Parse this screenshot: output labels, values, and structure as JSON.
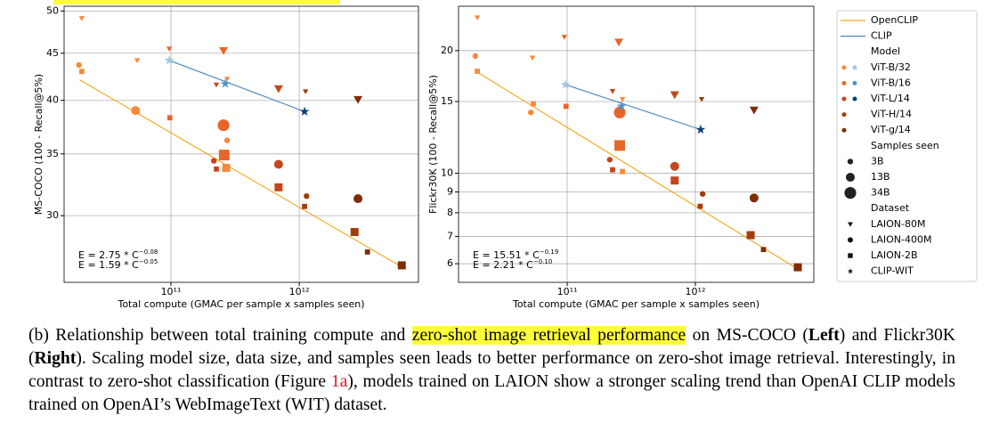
{
  "chart_data": [
    {
      "type": "scatter",
      "xscale": "log",
      "yscale": "log",
      "grid": true,
      "x_label": "Total compute (GMAC per sample x samples seen)",
      "y_label": "MS-COCO (100 - Recall@5%)",
      "xlim": [
        14700000000.0,
        8500000000000.0
      ],
      "ylim": [
        25.4,
        50.6
      ],
      "xticks": [
        {
          "value": 100000000000.0,
          "label": "10¹¹"
        },
        {
          "value": 1000000000000.0,
          "label": "10¹²"
        }
      ],
      "yticks": [
        30,
        35,
        40,
        45,
        50
      ],
      "fits": [
        {
          "source": "OpenCLIP",
          "x": [
            19500000000.0,
            6300000000000.0
          ],
          "y": [
            42.1,
            26.4
          ]
        },
        {
          "source": "CLIP",
          "x": [
            97000000000.0,
            1100000000000.0
          ],
          "y": [
            44.2,
            38.9
          ]
        }
      ],
      "annotations": [
        {
          "text": "E = 2.75 * C",
          "exponent": "−0.08",
          "source": "OpenCLIP"
        },
        {
          "text": "E = 1.59 * C",
          "exponent": "−0.05",
          "source": "CLIP"
        }
      ],
      "points": [
        {
          "x": 20200000000.0,
          "y": 49.1,
          "model": "ViT-B/32",
          "dataset": "LAION-80M",
          "samples": "3B"
        },
        {
          "x": 19200000000.0,
          "y": 43.7,
          "model": "ViT-B/32",
          "dataset": "LAION-400M",
          "samples": "3B"
        },
        {
          "x": 20200000000.0,
          "y": 43.0,
          "model": "ViT-B/32",
          "dataset": "LAION-2B",
          "samples": "3B"
        },
        {
          "x": 54500000000.0,
          "y": 44.2,
          "model": "ViT-B/32",
          "dataset": "LAION-80M",
          "samples": "3B"
        },
        {
          "x": 53000000000.0,
          "y": 39.0,
          "model": "ViT-B/32",
          "dataset": "LAION-400M",
          "samples": "13B"
        },
        {
          "x": 54500000000.0,
          "y": 38.9,
          "model": "ViT-B/32",
          "dataset": "LAION-2B",
          "samples": "3B"
        },
        {
          "x": 97000000000.0,
          "y": 45.5,
          "model": "ViT-B/16",
          "dataset": "LAION-80M",
          "samples": "3B"
        },
        {
          "x": 98000000000.0,
          "y": 38.3,
          "model": "ViT-B/16",
          "dataset": "LAION-2B",
          "samples": "3B"
        },
        {
          "x": 257000000000.0,
          "y": 45.3,
          "model": "ViT-B/16",
          "dataset": "LAION-80M",
          "samples": "13B"
        },
        {
          "x": 226000000000.0,
          "y": 41.6,
          "model": "ViT-L/14",
          "dataset": "LAION-80M",
          "samples": "3B"
        },
        {
          "x": 274000000000.0,
          "y": 42.2,
          "model": "ViT-B/32",
          "dataset": "LAION-80M",
          "samples": "3B"
        },
        {
          "x": 257000000000.0,
          "y": 37.6,
          "model": "ViT-B/16",
          "dataset": "LAION-400M",
          "samples": "34B"
        },
        {
          "x": 274000000000.0,
          "y": 36.2,
          "model": "ViT-B/32",
          "dataset": "LAION-400M",
          "samples": "3B"
        },
        {
          "x": 260000000000.0,
          "y": 34.9,
          "model": "ViT-B/16",
          "dataset": "LAION-2B",
          "samples": "34B"
        },
        {
          "x": 216000000000.0,
          "y": 34.4,
          "model": "ViT-L/14",
          "dataset": "LAION-400M",
          "samples": "3B"
        },
        {
          "x": 226000000000.0,
          "y": 33.7,
          "model": "ViT-L/14",
          "dataset": "LAION-2B",
          "samples": "3B"
        },
        {
          "x": 270000000000.0,
          "y": 33.8,
          "model": "ViT-B/32",
          "dataset": "LAION-2B",
          "samples": "13B"
        },
        {
          "x": 690000000000.0,
          "y": 41.2,
          "model": "ViT-L/14",
          "dataset": "LAION-80M",
          "samples": "13B"
        },
        {
          "x": 690000000000.0,
          "y": 34.1,
          "model": "ViT-L/14",
          "dataset": "LAION-400M",
          "samples": "13B"
        },
        {
          "x": 690000000000.0,
          "y": 32.2,
          "model": "ViT-L/14",
          "dataset": "LAION-2B",
          "samples": "13B"
        },
        {
          "x": 1120000000000.0,
          "y": 40.9,
          "model": "ViT-H/14",
          "dataset": "LAION-80M",
          "samples": "3B"
        },
        {
          "x": 1140000000000.0,
          "y": 31.5,
          "model": "ViT-H/14",
          "dataset": "LAION-400M",
          "samples": "3B"
        },
        {
          "x": 1100000000000.0,
          "y": 30.7,
          "model": "ViT-H/14",
          "dataset": "LAION-2B",
          "samples": "3B"
        },
        {
          "x": 2870000000000.0,
          "y": 40.1,
          "model": "ViT-g/14",
          "dataset": "LAION-80M",
          "samples": "13B"
        },
        {
          "x": 2870000000000.0,
          "y": 31.3,
          "model": "ViT-g/14",
          "dataset": "LAION-400M",
          "samples": "13B"
        },
        {
          "x": 2700000000000.0,
          "y": 28.8,
          "model": "ViT-H/14",
          "dataset": "LAION-2B",
          "samples": "13B"
        },
        {
          "x": 3400000000000.0,
          "y": 27.4,
          "model": "ViT-g/14",
          "dataset": "LAION-2B",
          "samples": "3B"
        },
        {
          "x": 6300000000000.0,
          "y": 26.5,
          "model": "ViT-g/14",
          "dataset": "LAION-2B",
          "samples": "13B"
        },
        {
          "x": 97000000000.0,
          "y": 44.2,
          "model": "ViT-B/32",
          "dataset": "CLIP-WIT",
          "samples": "13B"
        },
        {
          "x": 265000000000.0,
          "y": 41.7,
          "model": "ViT-B/16",
          "dataset": "CLIP-WIT",
          "samples": "13B"
        },
        {
          "x": 1100000000000.0,
          "y": 38.9,
          "model": "ViT-L/14",
          "dataset": "CLIP-WIT",
          "samples": "13B"
        }
      ]
    },
    {
      "type": "scatter",
      "xscale": "log",
      "yscale": "log",
      "grid": true,
      "x_label": "Total compute (GMAC per sample x samples seen)",
      "y_label": "Flickr30K (100 - Recall@5%)",
      "xlim": [
        14200000000.0,
        8400000000000.0
      ],
      "ylim": [
        5.4,
        25.7
      ],
      "xticks": [
        {
          "value": 100000000000.0,
          "label": "10¹¹"
        },
        {
          "value": 1000000000000.0,
          "label": "10¹²"
        }
      ],
      "yticks": [
        6,
        7,
        8,
        9,
        10,
        15,
        20
      ],
      "fits": [
        {
          "source": "OpenCLIP",
          "x": [
            20500000000.0,
            6300000000000.0
          ],
          "y": [
            17.6,
            5.82
          ]
        },
        {
          "source": "CLIP",
          "x": [
            97000000000.0,
            1100000000000.0
          ],
          "y": [
            16.5,
            12.8
          ]
        }
      ],
      "annotations": [
        {
          "text": "E = 15.51 * C",
          "exponent": "−0.19",
          "source": "OpenCLIP"
        },
        {
          "text": "E = 2.21 * C",
          "exponent": "−0.10",
          "source": "CLIP"
        }
      ],
      "points": [
        {
          "x": 19900000000.0,
          "y": 24.1,
          "model": "ViT-B/32",
          "dataset": "LAION-80M",
          "samples": "3B"
        },
        {
          "x": 19200000000.0,
          "y": 19.4,
          "model": "ViT-B/32",
          "dataset": "LAION-400M",
          "samples": "3B"
        },
        {
          "x": 19900000000.0,
          "y": 17.8,
          "model": "ViT-B/32",
          "dataset": "LAION-2B",
          "samples": "3B"
        },
        {
          "x": 53600000000.0,
          "y": 19.2,
          "model": "ViT-B/32",
          "dataset": "LAION-80M",
          "samples": "3B"
        },
        {
          "x": 54400000000.0,
          "y": 14.8,
          "model": "ViT-B/32",
          "dataset": "LAION-2B",
          "samples": "3B"
        },
        {
          "x": 52000000000.0,
          "y": 14.1,
          "model": "ViT-B/32",
          "dataset": "LAION-400M",
          "samples": "3B"
        },
        {
          "x": 95000000000.0,
          "y": 21.6,
          "model": "ViT-B/16",
          "dataset": "LAION-80M",
          "samples": "3B"
        },
        {
          "x": 98000000000.0,
          "y": 14.6,
          "model": "ViT-B/16",
          "dataset": "LAION-2B",
          "samples": "3B"
        },
        {
          "x": 253000000000.0,
          "y": 21.0,
          "model": "ViT-B/16",
          "dataset": "LAION-80M",
          "samples": "13B"
        },
        {
          "x": 226000000000.0,
          "y": 15.9,
          "model": "ViT-L/14",
          "dataset": "LAION-80M",
          "samples": "3B"
        },
        {
          "x": 270000000000.0,
          "y": 15.2,
          "model": "ViT-B/32",
          "dataset": "LAION-80M",
          "samples": "3B"
        },
        {
          "x": 257000000000.0,
          "y": 14.1,
          "model": "ViT-B/16",
          "dataset": "LAION-400M",
          "samples": "34B"
        },
        {
          "x": 257000000000.0,
          "y": 11.7,
          "model": "ViT-B/16",
          "dataset": "LAION-2B",
          "samples": "34B"
        },
        {
          "x": 215000000000.0,
          "y": 10.8,
          "model": "ViT-L/14",
          "dataset": "LAION-400M",
          "samples": "3B"
        },
        {
          "x": 226000000000.0,
          "y": 10.2,
          "model": "ViT-L/14",
          "dataset": "LAION-2B",
          "samples": "3B"
        },
        {
          "x": 270000000000.0,
          "y": 10.1,
          "model": "ViT-B/32",
          "dataset": "LAION-2B",
          "samples": "3B"
        },
        {
          "x": 690000000000.0,
          "y": 15.6,
          "model": "ViT-L/14",
          "dataset": "LAION-80M",
          "samples": "13B"
        },
        {
          "x": 690000000000.0,
          "y": 10.4,
          "model": "ViT-L/14",
          "dataset": "LAION-400M",
          "samples": "13B"
        },
        {
          "x": 690000000000.0,
          "y": 9.6,
          "model": "ViT-L/14",
          "dataset": "LAION-2B",
          "samples": "13B"
        },
        {
          "x": 1120000000000.0,
          "y": 15.2,
          "model": "ViT-H/14",
          "dataset": "LAION-80M",
          "samples": "3B"
        },
        {
          "x": 1140000000000.0,
          "y": 8.9,
          "model": "ViT-H/14",
          "dataset": "LAION-400M",
          "samples": "3B"
        },
        {
          "x": 1090000000000.0,
          "y": 8.3,
          "model": "ViT-H/14",
          "dataset": "LAION-2B",
          "samples": "3B"
        },
        {
          "x": 2870000000000.0,
          "y": 14.3,
          "model": "ViT-g/14",
          "dataset": "LAION-80M",
          "samples": "13B"
        },
        {
          "x": 2870000000000.0,
          "y": 8.7,
          "model": "ViT-g/14",
          "dataset": "LAION-400M",
          "samples": "13B"
        },
        {
          "x": 2700000000000.0,
          "y": 7.05,
          "model": "ViT-H/14",
          "dataset": "LAION-2B",
          "samples": "13B"
        },
        {
          "x": 3400000000000.0,
          "y": 6.5,
          "model": "ViT-g/14",
          "dataset": "LAION-2B",
          "samples": "3B"
        },
        {
          "x": 6300000000000.0,
          "y": 5.88,
          "model": "ViT-g/14",
          "dataset": "LAION-2B",
          "samples": "13B"
        },
        {
          "x": 97000000000.0,
          "y": 16.5,
          "model": "ViT-B/32",
          "dataset": "CLIP-WIT",
          "samples": "13B"
        },
        {
          "x": 265000000000.0,
          "y": 14.6,
          "model": "ViT-B/16",
          "dataset": "CLIP-WIT",
          "samples": "13B"
        },
        {
          "x": 1100000000000.0,
          "y": 12.8,
          "model": "ViT-L/14",
          "dataset": "CLIP-WIT",
          "samples": "13B"
        }
      ]
    }
  ],
  "legend": {
    "lines": [
      {
        "name": "OpenCLIP",
        "color": "#f2a81d"
      },
      {
        "name": "CLIP",
        "color": "#4a86c0"
      }
    ],
    "model_title": "Model",
    "models": [
      {
        "label": "ViT-B/32",
        "colors": [
          "#f68a3a",
          "#9ecae1"
        ]
      },
      {
        "label": "ViT-B/16",
        "colors": [
          "#e8652a",
          "#4f92c6"
        ]
      },
      {
        "label": "ViT-L/14",
        "colors": [
          "#c4461a",
          "#0b3f78"
        ]
      },
      {
        "label": "ViT-H/14",
        "colors": [
          "#a33d0c"
        ]
      },
      {
        "label": "ViT-g/14",
        "colors": [
          "#7f2c04"
        ]
      }
    ],
    "samples_title": "Samples seen",
    "samples": [
      {
        "label": "3B",
        "size": 3.2
      },
      {
        "label": "13B",
        "size": 5
      },
      {
        "label": "34B",
        "size": 6.6
      }
    ],
    "dataset_title": "Dataset",
    "datasets": [
      {
        "label": "LAION-80M",
        "marker": "triangle"
      },
      {
        "label": "LAION-400M",
        "marker": "circle"
      },
      {
        "label": "LAION-2B",
        "marker": "square"
      },
      {
        "label": "CLIP-WIT",
        "marker": "star"
      }
    ]
  },
  "caption": [
    {
      "text": "(b) Relationship between total training compute and "
    },
    {
      "text": "zero-shot image retrieval performance",
      "highlight": true
    },
    {
      "text": " on MS-COCO ("
    },
    {
      "text": "Left",
      "bold": true
    },
    {
      "text": ") and Flickr30K ("
    },
    {
      "text": "Right",
      "bold": true
    },
    {
      "text": "). Scaling model size, data size, and samples seen leads to better performance on zero-shot image retrieval. Interestingly, in contrast to zero-shot classification (Figure  "
    },
    {
      "text": "1a",
      "link": true
    },
    {
      "text": "), models trained on LAION show a stronger scaling trend than OpenAI CLIP models trained on OpenAI’s WebImageText (WIT) dataset."
    }
  ]
}
